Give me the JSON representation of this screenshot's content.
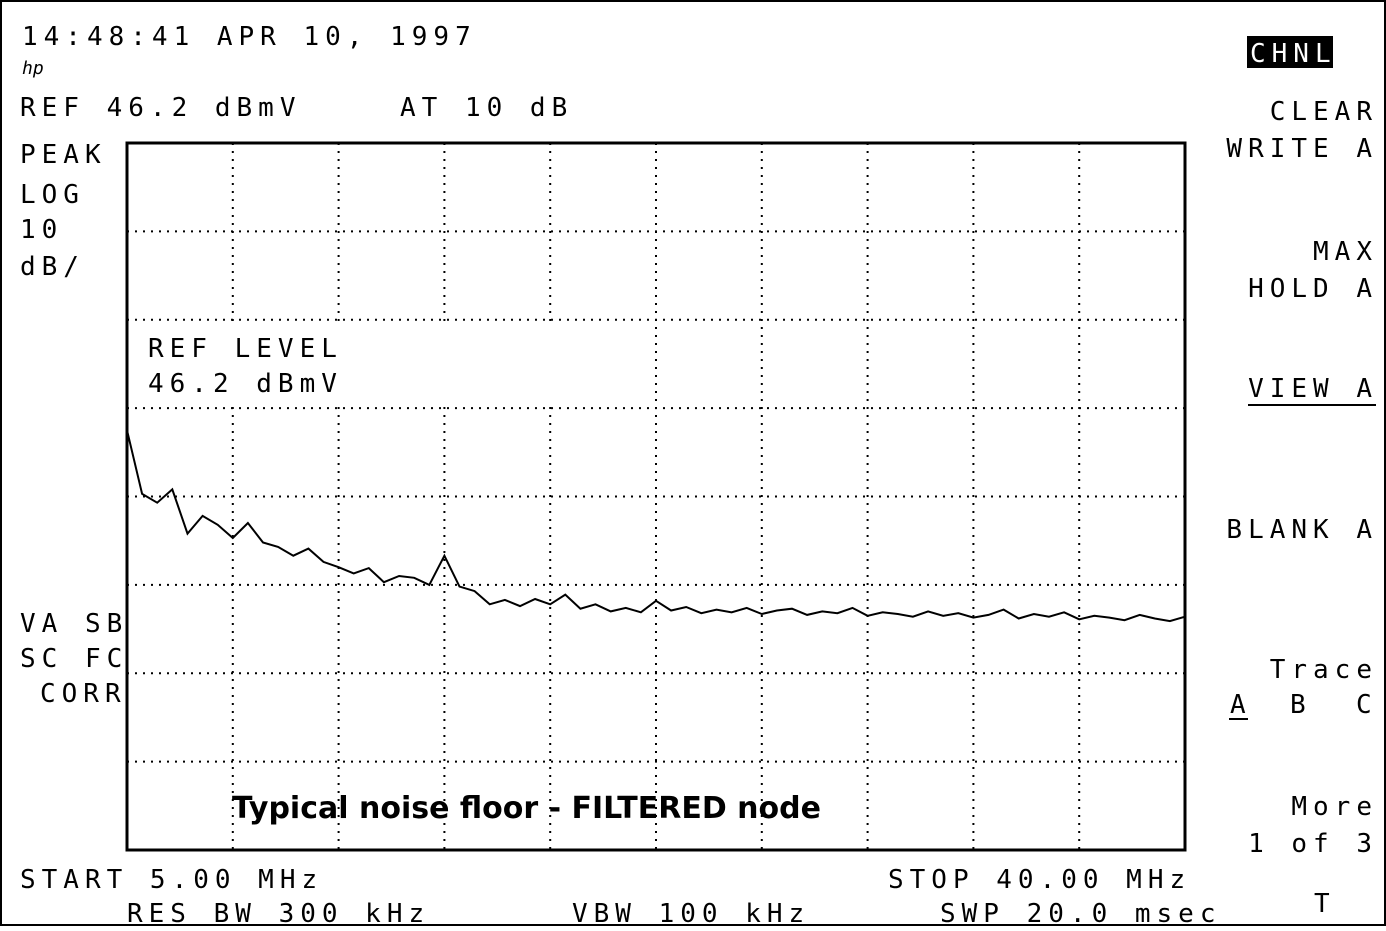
{
  "screen": {
    "timestamp": "14:48:41 APR 10, 1997",
    "logo": "hp",
    "ref": "REF 46.2 dBmV",
    "atten": "AT 10 dB",
    "left": [
      "PEAK",
      "LOG",
      "10",
      "dB/"
    ],
    "left_lower": [
      "VA SB",
      "SC FC",
      "CORR"
    ],
    "ref_level": [
      "REF LEVEL",
      "46.2 dBmV"
    ],
    "start": "START 5.00 MHz",
    "stop": "STOP 40.00 MHz",
    "res_bw": "RES BW 300 kHz",
    "vbw": "VBW 100 kHz",
    "swp": "SWP 20.0 msec",
    "softkeys": {
      "title": "CHNL",
      "clear_write": [
        "CLEAR",
        "WRITE A"
      ],
      "max_hold": [
        "MAX",
        "HOLD A"
      ],
      "view": "VIEW A",
      "blank": "BLANK A",
      "trace": "Trace",
      "trace_options": [
        "A",
        "B",
        "C"
      ],
      "more": [
        "More",
        "1 of 3"
      ],
      "footer": "T"
    }
  },
  "chart_data": {
    "type": "line",
    "annotation": "Typical noise floor - FILTERED node",
    "x": [
      5,
      5.5,
      6,
      6.5,
      7,
      7.5,
      8,
      8.5,
      9,
      9.5,
      10,
      10.5,
      11,
      11.5,
      12,
      12.5,
      13,
      13.5,
      14,
      14.5,
      15,
      15.5,
      16,
      16.5,
      17,
      17.5,
      18,
      18.5,
      19,
      19.5,
      20,
      20.5,
      21,
      21.5,
      22,
      22.5,
      23,
      23.5,
      24,
      24.5,
      25,
      25.5,
      26,
      26.5,
      27,
      27.5,
      28,
      28.5,
      29,
      29.5,
      30,
      30.5,
      31,
      31.5,
      32,
      32.5,
      33,
      33.5,
      34,
      34.5,
      35,
      35.5,
      36,
      36.5,
      37,
      37.5,
      38,
      38.5,
      39,
      39.5,
      40
    ],
    "series": [
      {
        "color": "#000000",
        "values": [
          13.7,
          6.5,
          5.5,
          7.0,
          2.0,
          4.0,
          3.0,
          1.5,
          3.2,
          1.0,
          0.5,
          -0.5,
          0.3,
          -1.2,
          -1.8,
          -2.5,
          -1.9,
          -3.5,
          -2.8,
          -3.0,
          -3.8,
          -0.5,
          -4.0,
          -4.5,
          -6.0,
          -5.5,
          -6.2,
          -5.4,
          -6.0,
          -4.9,
          -6.5,
          -6.0,
          -6.8,
          -6.4,
          -6.9,
          -5.6,
          -6.7,
          -6.3,
          -7.0,
          -6.6,
          -6.9,
          -6.4,
          -7.1,
          -6.7,
          -6.5,
          -7.2,
          -6.8,
          -7.0,
          -6.4,
          -7.3,
          -6.9,
          -7.1,
          -7.4,
          -6.8,
          -7.3,
          -7.0,
          -7.5,
          -7.2,
          -6.6,
          -7.6,
          -7.1,
          -7.4,
          -6.9,
          -7.7,
          -7.3,
          -7.5,
          -7.8,
          -7.2,
          -7.6,
          -7.9,
          -7.4
        ]
      }
    ],
    "xlim": [
      5,
      40
    ],
    "xticks": [
      8.5,
      12,
      15.5,
      19,
      22.5,
      26,
      29.5,
      33,
      36.5
    ],
    "ylim": [
      -33.8,
      46.2
    ],
    "yticks": [
      36.2,
      26.2,
      16.2,
      6.2,
      -3.8,
      -13.8,
      -23.8
    ],
    "grid": true
  }
}
